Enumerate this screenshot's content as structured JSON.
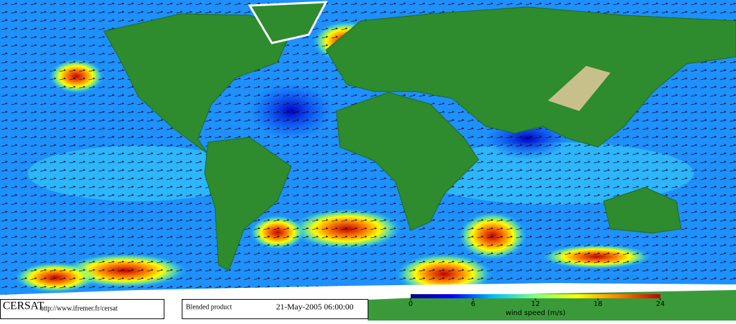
{
  "footer": {
    "logo": "CERSAT",
    "url": "http://www.ifremer.fr/cersat",
    "product": "Blended product",
    "datetime": "21-May-2005 06:00:00"
  },
  "colorbar": {
    "label": "wind speed (m/s)",
    "range": [
      0,
      24
    ],
    "ticks": [
      0,
      6,
      12,
      18,
      24
    ],
    "colors": [
      "#000080",
      "#0000ff",
      "#00c0ff",
      "#80ff80",
      "#ffff00",
      "#ff8000",
      "#c00000"
    ]
  }
}
